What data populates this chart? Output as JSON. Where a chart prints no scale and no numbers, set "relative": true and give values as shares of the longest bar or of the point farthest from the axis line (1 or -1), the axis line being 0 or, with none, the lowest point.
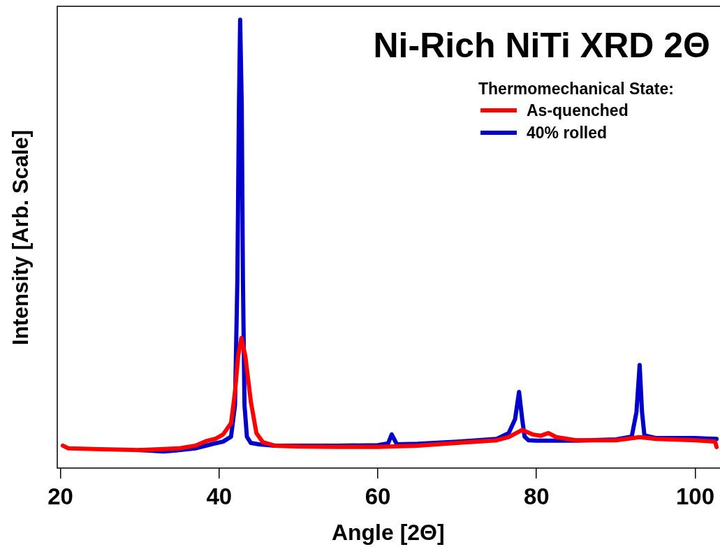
{
  "chart_data": {
    "type": "line",
    "title": "Ni-Rich NiTi XRD 2Θ",
    "xlabel": "Angle [2Θ]",
    "ylabel": "Intensity [Arb. Scale]",
    "legend_title": "Thermomechanical State:",
    "legend": "top right",
    "relative": true,
    "xlim": [
      19.6,
      103
    ],
    "xticks": [
      20,
      40,
      60,
      80,
      100
    ],
    "grid": false,
    "line_style": "solid",
    "series": [
      {
        "name": "As-quenched",
        "color": "#ff0000",
        "x": [
          20.3,
          21,
          25,
          30,
          35,
          37,
          38.5,
          39.5,
          40.5,
          41.5,
          42,
          42.4,
          42.8,
          43.3,
          44,
          44.7,
          45.5,
          47,
          50,
          55,
          60,
          65,
          70,
          75,
          76.5,
          78.2,
          79.5,
          80.5,
          81.5,
          82.5,
          85,
          90,
          93,
          95,
          100,
          102.5,
          102.7
        ],
        "values": [
          0.05,
          0.044,
          0.042,
          0.04,
          0.044,
          0.05,
          0.061,
          0.065,
          0.075,
          0.1,
          0.17,
          0.25,
          0.29,
          0.25,
          0.148,
          0.078,
          0.058,
          0.05,
          0.048,
          0.047,
          0.047,
          0.05,
          0.056,
          0.062,
          0.069,
          0.085,
          0.075,
          0.072,
          0.078,
          0.069,
          0.062,
          0.062,
          0.069,
          0.065,
          0.062,
          0.059,
          0.047
        ]
      },
      {
        "name": "40% rolled",
        "color": "#0000cc",
        "x": [
          30,
          33,
          35,
          37,
          39,
          40.5,
          41.5,
          42,
          42.3,
          42.5,
          42.65,
          42.85,
          43,
          43.2,
          43.5,
          44,
          45,
          47,
          50,
          55,
          60,
          61.3,
          61.75,
          62.4,
          65,
          70,
          75,
          76.5,
          77.3,
          77.8,
          78.2,
          78.5,
          79,
          80,
          85,
          90,
          92,
          92.6,
          93,
          93.3,
          93.6,
          95,
          100,
          102.7
        ],
        "values": [
          0.04,
          0.037,
          0.04,
          0.044,
          0.053,
          0.059,
          0.07,
          0.14,
          0.42,
          0.81,
          1,
          0.81,
          0.42,
          0.14,
          0.07,
          0.056,
          0.053,
          0.05,
          0.05,
          0.05,
          0.051,
          0.055,
          0.075,
          0.053,
          0.054,
          0.059,
          0.065,
          0.078,
          0.109,
          0.17,
          0.109,
          0.07,
          0.062,
          0.061,
          0.061,
          0.064,
          0.07,
          0.125,
          0.23,
          0.125,
          0.073,
          0.067,
          0.067,
          0.065
        ]
      }
    ]
  }
}
